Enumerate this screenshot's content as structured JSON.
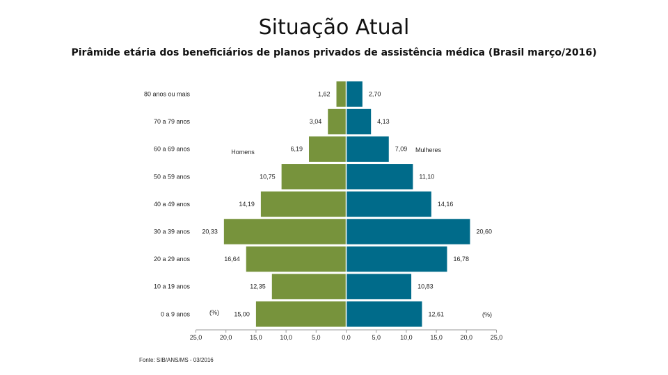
{
  "header": {
    "title": "Situação Atual",
    "subtitle": "Pirâmide etária dos beneficiários de planos privados de assistência médica (Brasil março/2016)"
  },
  "chart_data": {
    "type": "bar",
    "orientation": "horizontal-pyramid",
    "categories": [
      "80 anos ou mais",
      "70 a 79 anos",
      "60 a 69 anos",
      "50 a 59 anos",
      "40 a 49 anos",
      "30 a 39 anos",
      "20 a 29 anos",
      "10 a 19 anos",
      "0 a 9 anos"
    ],
    "series": [
      {
        "name": "Homens",
        "side": "left",
        "color": "#77933c",
        "values": [
          1.62,
          3.04,
          6.19,
          10.75,
          14.19,
          20.33,
          16.64,
          12.35,
          15.0
        ],
        "labels": [
          "1,62",
          "3,04",
          "6,19",
          "10,75",
          "14,19",
          "20,33",
          "16,64",
          "12,35",
          "15,00"
        ]
      },
      {
        "name": "Mulheres",
        "side": "right",
        "color": "#006b8a",
        "values": [
          2.7,
          4.13,
          7.09,
          11.1,
          14.16,
          20.6,
          16.78,
          10.83,
          12.61
        ],
        "labels": [
          "2,70",
          "4,13",
          "7,09",
          "11,10",
          "14,16",
          "20,60",
          "16,78",
          "10,83",
          "12,61"
        ]
      }
    ],
    "x_ticks": [
      "25,0",
      "20,0",
      "15,0",
      "10,0",
      "5,0",
      "0,0",
      "5,0",
      "10,0",
      "15,0",
      "20,0",
      "25,0"
    ],
    "xlim": [
      -25,
      25
    ],
    "unit_label_left": "(%)",
    "unit_label_right": "(%)",
    "legend_left": "Homens",
    "legend_right": "Mulheres"
  },
  "footer": {
    "source": "Fonte: SIB/ANS/MS - 03/2016"
  }
}
